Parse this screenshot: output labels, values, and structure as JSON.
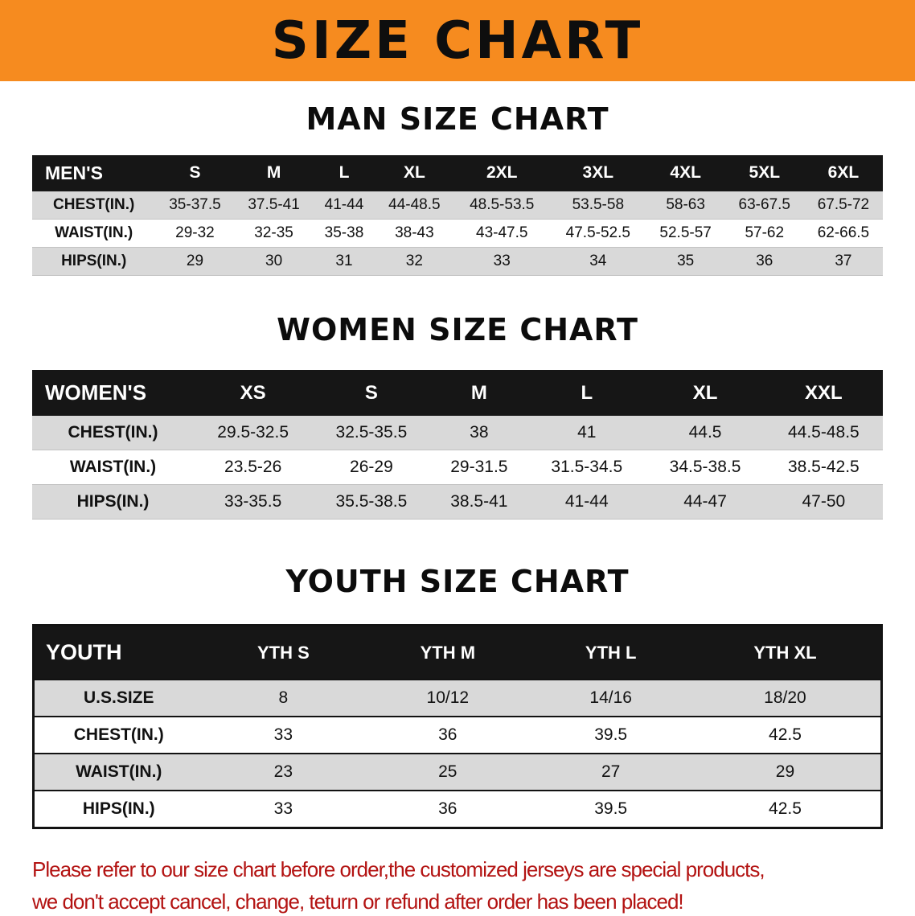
{
  "banner": {
    "title": "SIZE CHART"
  },
  "colors": {
    "banner_bg": "#f68b1f",
    "table_header_bg": "#161616",
    "stripe_bg": "#d9d9d9",
    "notice_color": "#b31312"
  },
  "men": {
    "heading": "MAN SIZE CHART",
    "header": [
      "MEN'S",
      "S",
      "M",
      "L",
      "XL",
      "2XL",
      "3XL",
      "4XL",
      "5XL",
      "6XL"
    ],
    "rows": [
      [
        "CHEST(IN.)",
        "35-37.5",
        "37.5-41",
        "41-44",
        "44-48.5",
        "48.5-53.5",
        "53.5-58",
        "58-63",
        "63-67.5",
        "67.5-72"
      ],
      [
        "WAIST(IN.)",
        "29-32",
        "32-35",
        "35-38",
        "38-43",
        "43-47.5",
        "47.5-52.5",
        "52.5-57",
        "57-62",
        "62-66.5"
      ],
      [
        "HIPS(IN.)",
        "29",
        "30",
        "31",
        "32",
        "33",
        "34",
        "35",
        "36",
        "37"
      ]
    ]
  },
  "women": {
    "heading": "WOMEN SIZE CHART",
    "header": [
      "WOMEN'S",
      "XS",
      "S",
      "M",
      "L",
      "XL",
      "XXL"
    ],
    "rows": [
      [
        "CHEST(IN.)",
        "29.5-32.5",
        "32.5-35.5",
        "38",
        "41",
        "44.5",
        "44.5-48.5"
      ],
      [
        "WAIST(IN.)",
        "23.5-26",
        "26-29",
        "29-31.5",
        "31.5-34.5",
        "34.5-38.5",
        "38.5-42.5"
      ],
      [
        "HIPS(IN.)",
        "33-35.5",
        "35.5-38.5",
        "38.5-41",
        "41-44",
        "44-47",
        "47-50"
      ]
    ]
  },
  "youth": {
    "heading": "YOUTH SIZE CHART",
    "header": [
      "YOUTH",
      "YTH S",
      "YTH M",
      "YTH L",
      "YTH XL"
    ],
    "rows": [
      [
        "U.S.SIZE",
        "8",
        "10/12",
        "14/16",
        "18/20"
      ],
      [
        "CHEST(IN.)",
        "33",
        "36",
        "39.5",
        "42.5"
      ],
      [
        "WAIST(IN.)",
        "23",
        "25",
        "27",
        "29"
      ],
      [
        "HIPS(IN.)",
        "33",
        "36",
        "39.5",
        "42.5"
      ]
    ]
  },
  "notice": {
    "line1": "Please refer to our size chart before order,the customized jerseys are special products,",
    "line2": "we don't accept cancel, change, teturn or refund after order has been placed!"
  }
}
